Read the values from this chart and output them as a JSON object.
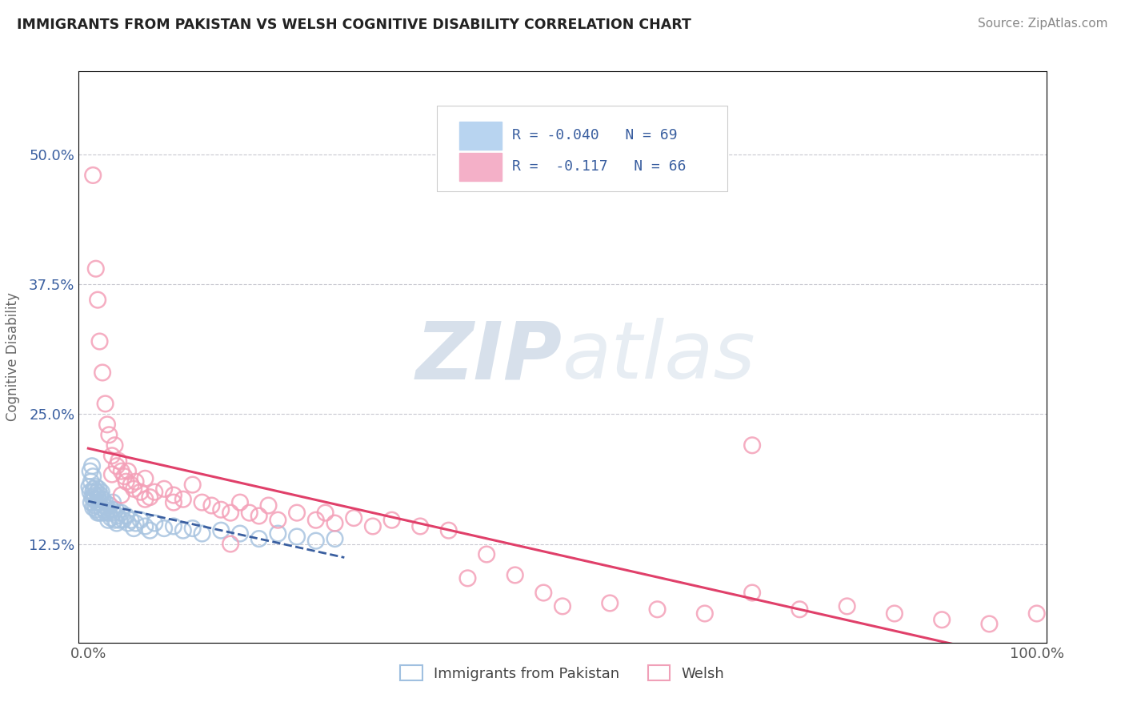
{
  "title": "IMMIGRANTS FROM PAKISTAN VS WELSH COGNITIVE DISABILITY CORRELATION CHART",
  "source_text": "Source: ZipAtlas.com",
  "ylabel": "Cognitive Disability",
  "x_tick_labels": [
    "0.0%",
    "100.0%"
  ],
  "y_tick_labels": [
    "12.5%",
    "25.0%",
    "37.5%",
    "50.0%"
  ],
  "y_tick_values": [
    0.125,
    0.25,
    0.375,
    0.5
  ],
  "xlim": [
    -0.01,
    1.01
  ],
  "ylim": [
    0.03,
    0.58
  ],
  "blue_R": -0.04,
  "blue_N": 69,
  "pink_R": -0.117,
  "pink_N": 66,
  "blue_color": "#a8c4e0",
  "pink_color": "#f4a0b8",
  "blue_line_color": "#3a5fa0",
  "pink_line_color": "#e0406a",
  "blue_line_style": "--",
  "pink_line_style": "-",
  "legend_label_blue": "Immigrants from Pakistan",
  "legend_label_pink": "Welsh",
  "watermark_zip": "ZIP",
  "watermark_atlas": "atlas",
  "background_color": "#ffffff",
  "blue_x": [
    0.001,
    0.002,
    0.002,
    0.003,
    0.003,
    0.004,
    0.004,
    0.005,
    0.005,
    0.005,
    0.006,
    0.006,
    0.007,
    0.007,
    0.008,
    0.008,
    0.009,
    0.009,
    0.01,
    0.01,
    0.011,
    0.011,
    0.012,
    0.012,
    0.013,
    0.013,
    0.014,
    0.015,
    0.015,
    0.016,
    0.017,
    0.018,
    0.019,
    0.02,
    0.021,
    0.022,
    0.023,
    0.024,
    0.025,
    0.026,
    0.027,
    0.028,
    0.029,
    0.03,
    0.031,
    0.033,
    0.035,
    0.037,
    0.04,
    0.042,
    0.045,
    0.048,
    0.05,
    0.055,
    0.06,
    0.065,
    0.07,
    0.08,
    0.09,
    0.1,
    0.11,
    0.12,
    0.14,
    0.16,
    0.18,
    0.2,
    0.22,
    0.24,
    0.26
  ],
  "blue_y": [
    0.18,
    0.175,
    0.195,
    0.185,
    0.165,
    0.2,
    0.17,
    0.175,
    0.16,
    0.19,
    0.168,
    0.178,
    0.172,
    0.162,
    0.18,
    0.158,
    0.175,
    0.165,
    0.17,
    0.155,
    0.168,
    0.178,
    0.165,
    0.155,
    0.172,
    0.16,
    0.175,
    0.168,
    0.155,
    0.162,
    0.158,
    0.165,
    0.155,
    0.16,
    0.148,
    0.155,
    0.162,
    0.15,
    0.158,
    0.165,
    0.155,
    0.148,
    0.158,
    0.145,
    0.152,
    0.148,
    0.155,
    0.148,
    0.152,
    0.145,
    0.148,
    0.14,
    0.145,
    0.148,
    0.142,
    0.138,
    0.145,
    0.14,
    0.142,
    0.138,
    0.14,
    0.135,
    0.138,
    0.135,
    0.13,
    0.135,
    0.132,
    0.128,
    0.13
  ],
  "pink_x": [
    0.005,
    0.008,
    0.01,
    0.012,
    0.015,
    0.018,
    0.02,
    0.022,
    0.025,
    0.028,
    0.03,
    0.032,
    0.035,
    0.038,
    0.04,
    0.042,
    0.045,
    0.048,
    0.05,
    0.055,
    0.06,
    0.065,
    0.07,
    0.08,
    0.09,
    0.1,
    0.11,
    0.12,
    0.13,
    0.14,
    0.15,
    0.16,
    0.17,
    0.18,
    0.19,
    0.2,
    0.22,
    0.24,
    0.26,
    0.28,
    0.3,
    0.32,
    0.35,
    0.38,
    0.4,
    0.42,
    0.45,
    0.48,
    0.5,
    0.55,
    0.6,
    0.65,
    0.7,
    0.75,
    0.8,
    0.85,
    0.9,
    0.95,
    1.0,
    0.025,
    0.035,
    0.06,
    0.09,
    0.15,
    0.25,
    0.7
  ],
  "pink_y": [
    0.48,
    0.39,
    0.36,
    0.32,
    0.29,
    0.26,
    0.24,
    0.23,
    0.21,
    0.22,
    0.2,
    0.205,
    0.195,
    0.19,
    0.185,
    0.195,
    0.182,
    0.178,
    0.185,
    0.175,
    0.188,
    0.17,
    0.175,
    0.178,
    0.172,
    0.168,
    0.182,
    0.165,
    0.162,
    0.158,
    0.155,
    0.165,
    0.155,
    0.152,
    0.162,
    0.148,
    0.155,
    0.148,
    0.145,
    0.15,
    0.142,
    0.148,
    0.142,
    0.138,
    0.092,
    0.115,
    0.095,
    0.078,
    0.065,
    0.068,
    0.062,
    0.058,
    0.078,
    0.062,
    0.065,
    0.058,
    0.052,
    0.048,
    0.058,
    0.192,
    0.172,
    0.168,
    0.165,
    0.125,
    0.155,
    0.22
  ]
}
